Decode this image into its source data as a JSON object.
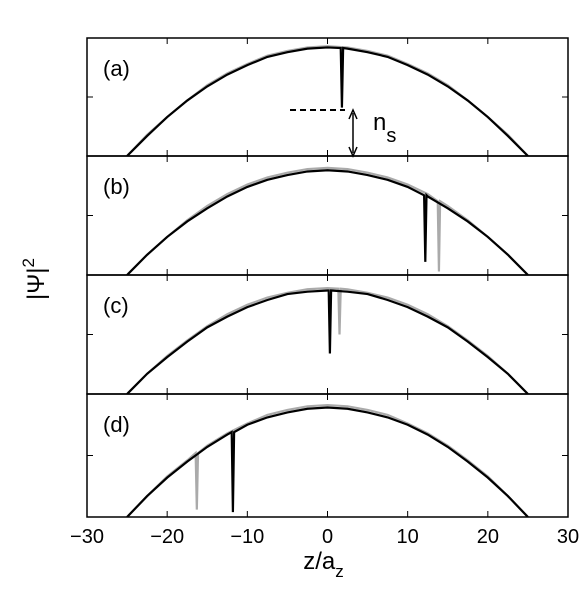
{
  "chart_data": [
    {
      "type": "line",
      "label": "(a)",
      "xlim": [
        -30,
        30
      ],
      "ylim": [
        0,
        1
      ],
      "yticks": [
        0.5
      ],
      "annotation": {
        "text": "n",
        "sub": "s"
      },
      "series": [
        {
          "color": "#aaaaaa",
          "x": [
            -25,
            -22.5,
            -20,
            -17.5,
            -15,
            -12.5,
            -10,
            -7.5,
            -5,
            -2.5,
            0,
            2.5,
            5,
            7.5,
            10,
            12.5,
            15,
            17.5,
            20,
            22.5,
            25
          ],
          "values": [
            0,
            0.18,
            0.33,
            0.47,
            0.6,
            0.7,
            0.78,
            0.85,
            0.89,
            0.92,
            0.93,
            0.92,
            0.89,
            0.85,
            0.78,
            0.7,
            0.6,
            0.47,
            0.33,
            0.18,
            0
          ]
        },
        {
          "color": "#000000",
          "x": [
            -25,
            -22.5,
            -20,
            -17.5,
            -15,
            -12.5,
            -10,
            -7.5,
            -5,
            -2.5,
            0,
            1.65,
            1.8,
            1.95,
            2.5,
            5,
            7.5,
            10,
            12.5,
            15,
            17.5,
            20,
            22.5,
            25
          ],
          "values": [
            0,
            0.17,
            0.33,
            0.47,
            0.59,
            0.69,
            0.77,
            0.84,
            0.88,
            0.91,
            0.92,
            0.915,
            0.41,
            0.915,
            0.91,
            0.88,
            0.84,
            0.77,
            0.69,
            0.59,
            0.47,
            0.33,
            0.17,
            0
          ]
        }
      ]
    },
    {
      "type": "line",
      "label": "(b)",
      "xlim": [
        -30,
        30
      ],
      "ylim": [
        0,
        1
      ],
      "yticks": [
        0.5
      ],
      "ylabel": {
        "text": "|Ψ|",
        "sup": "2"
      },
      "series": [
        {
          "color": "#aaaaaa",
          "x": [
            -25,
            -22.5,
            -20,
            -17.5,
            -15,
            -12.5,
            -10,
            -7.5,
            -5,
            -2.5,
            0,
            2.5,
            5,
            7.5,
            10,
            12.5,
            13.75,
            13.9,
            14.05,
            15,
            17.5,
            20,
            22.5,
            25
          ],
          "values": [
            0,
            0.17,
            0.32,
            0.46,
            0.58,
            0.68,
            0.76,
            0.82,
            0.86,
            0.89,
            0.9,
            0.89,
            0.86,
            0.82,
            0.76,
            0.68,
            0.62,
            0.03,
            0.62,
            0.58,
            0.46,
            0.32,
            0.17,
            0
          ]
        },
        {
          "color": "#000000",
          "x": [
            -25,
            -22.5,
            -20,
            -17.5,
            -15,
            -12.5,
            -10,
            -7.5,
            -5,
            -2.5,
            0,
            2.5,
            5,
            7.5,
            10,
            12.05,
            12.2,
            12.35,
            12.5,
            15,
            17.5,
            20,
            22.5,
            25
          ],
          "values": [
            0,
            0.17,
            0.32,
            0.45,
            0.56,
            0.66,
            0.74,
            0.8,
            0.84,
            0.87,
            0.88,
            0.87,
            0.84,
            0.8,
            0.74,
            0.67,
            0.11,
            0.67,
            0.66,
            0.56,
            0.45,
            0.32,
            0.17,
            0
          ]
        }
      ]
    },
    {
      "type": "line",
      "label": "(c)",
      "xlim": [
        -30,
        30
      ],
      "ylim": [
        0,
        1
      ],
      "yticks": [
        0.5
      ],
      "series": [
        {
          "color": "#aaaaaa",
          "x": [
            -25,
            -22.5,
            -20,
            -17.5,
            -15,
            -12.5,
            -10,
            -7.5,
            -5,
            -2.5,
            0,
            1.35,
            1.5,
            1.65,
            2.5,
            5,
            7.5,
            10,
            12.5,
            15,
            17.5,
            20,
            22.5,
            25
          ],
          "values": [
            0,
            0.17,
            0.32,
            0.45,
            0.57,
            0.67,
            0.75,
            0.81,
            0.85,
            0.88,
            0.89,
            0.885,
            0.5,
            0.885,
            0.88,
            0.85,
            0.81,
            0.75,
            0.67,
            0.57,
            0.45,
            0.32,
            0.17,
            0
          ]
        },
        {
          "color": "#000000",
          "x": [
            -25,
            -22.5,
            -20,
            -17.5,
            -15,
            -12.5,
            -10,
            -7.5,
            -5,
            -2.5,
            0,
            0.15,
            0.3,
            0.45,
            2.5,
            5,
            7.5,
            10,
            12.5,
            15,
            17.5,
            20,
            22.5,
            25
          ],
          "values": [
            0,
            0.17,
            0.31,
            0.44,
            0.56,
            0.65,
            0.73,
            0.79,
            0.84,
            0.86,
            0.87,
            0.87,
            0.34,
            0.87,
            0.86,
            0.84,
            0.79,
            0.73,
            0.65,
            0.56,
            0.44,
            0.31,
            0.17,
            0
          ]
        }
      ]
    },
    {
      "type": "line",
      "label": "(d)",
      "xlim": [
        -30,
        30
      ],
      "ylim": [
        0,
        1
      ],
      "yticks": [
        0.5
      ],
      "xticks": [
        {
          "value": -30,
          "label": "−30"
        },
        {
          "value": -20,
          "label": "−20"
        },
        {
          "value": -10,
          "label": "−10"
        },
        0,
        10,
        20,
        30
      ],
      "xlabel": {
        "text": "z/a",
        "sub": "z"
      },
      "series": [
        {
          "color": "#aaaaaa",
          "x": [
            -25,
            -22.5,
            -20,
            -17.5,
            -16.45,
            -16.3,
            -16.15,
            -15,
            -12.5,
            -10,
            -7.5,
            -5,
            -2.5,
            0,
            2.5,
            5,
            7.5,
            10,
            12.5,
            15,
            17.5,
            20,
            22.5,
            25
          ],
          "values": [
            0,
            0.17,
            0.33,
            0.46,
            0.52,
            0.06,
            0.52,
            0.58,
            0.68,
            0.76,
            0.83,
            0.87,
            0.9,
            0.91,
            0.9,
            0.87,
            0.83,
            0.76,
            0.68,
            0.58,
            0.46,
            0.33,
            0.17,
            0
          ]
        },
        {
          "color": "#000000",
          "x": [
            -25,
            -22.5,
            -20,
            -17.5,
            -15,
            -12.5,
            -11.95,
            -11.8,
            -11.65,
            -10,
            -7.5,
            -5,
            -2.5,
            0,
            2.5,
            5,
            7.5,
            10,
            12.5,
            15,
            17.5,
            20,
            22.5,
            25
          ],
          "values": [
            0,
            0.17,
            0.32,
            0.45,
            0.57,
            0.67,
            0.69,
            0.04,
            0.69,
            0.75,
            0.81,
            0.85,
            0.88,
            0.89,
            0.88,
            0.85,
            0.81,
            0.75,
            0.67,
            0.57,
            0.45,
            0.32,
            0.17,
            0
          ]
        }
      ]
    }
  ]
}
